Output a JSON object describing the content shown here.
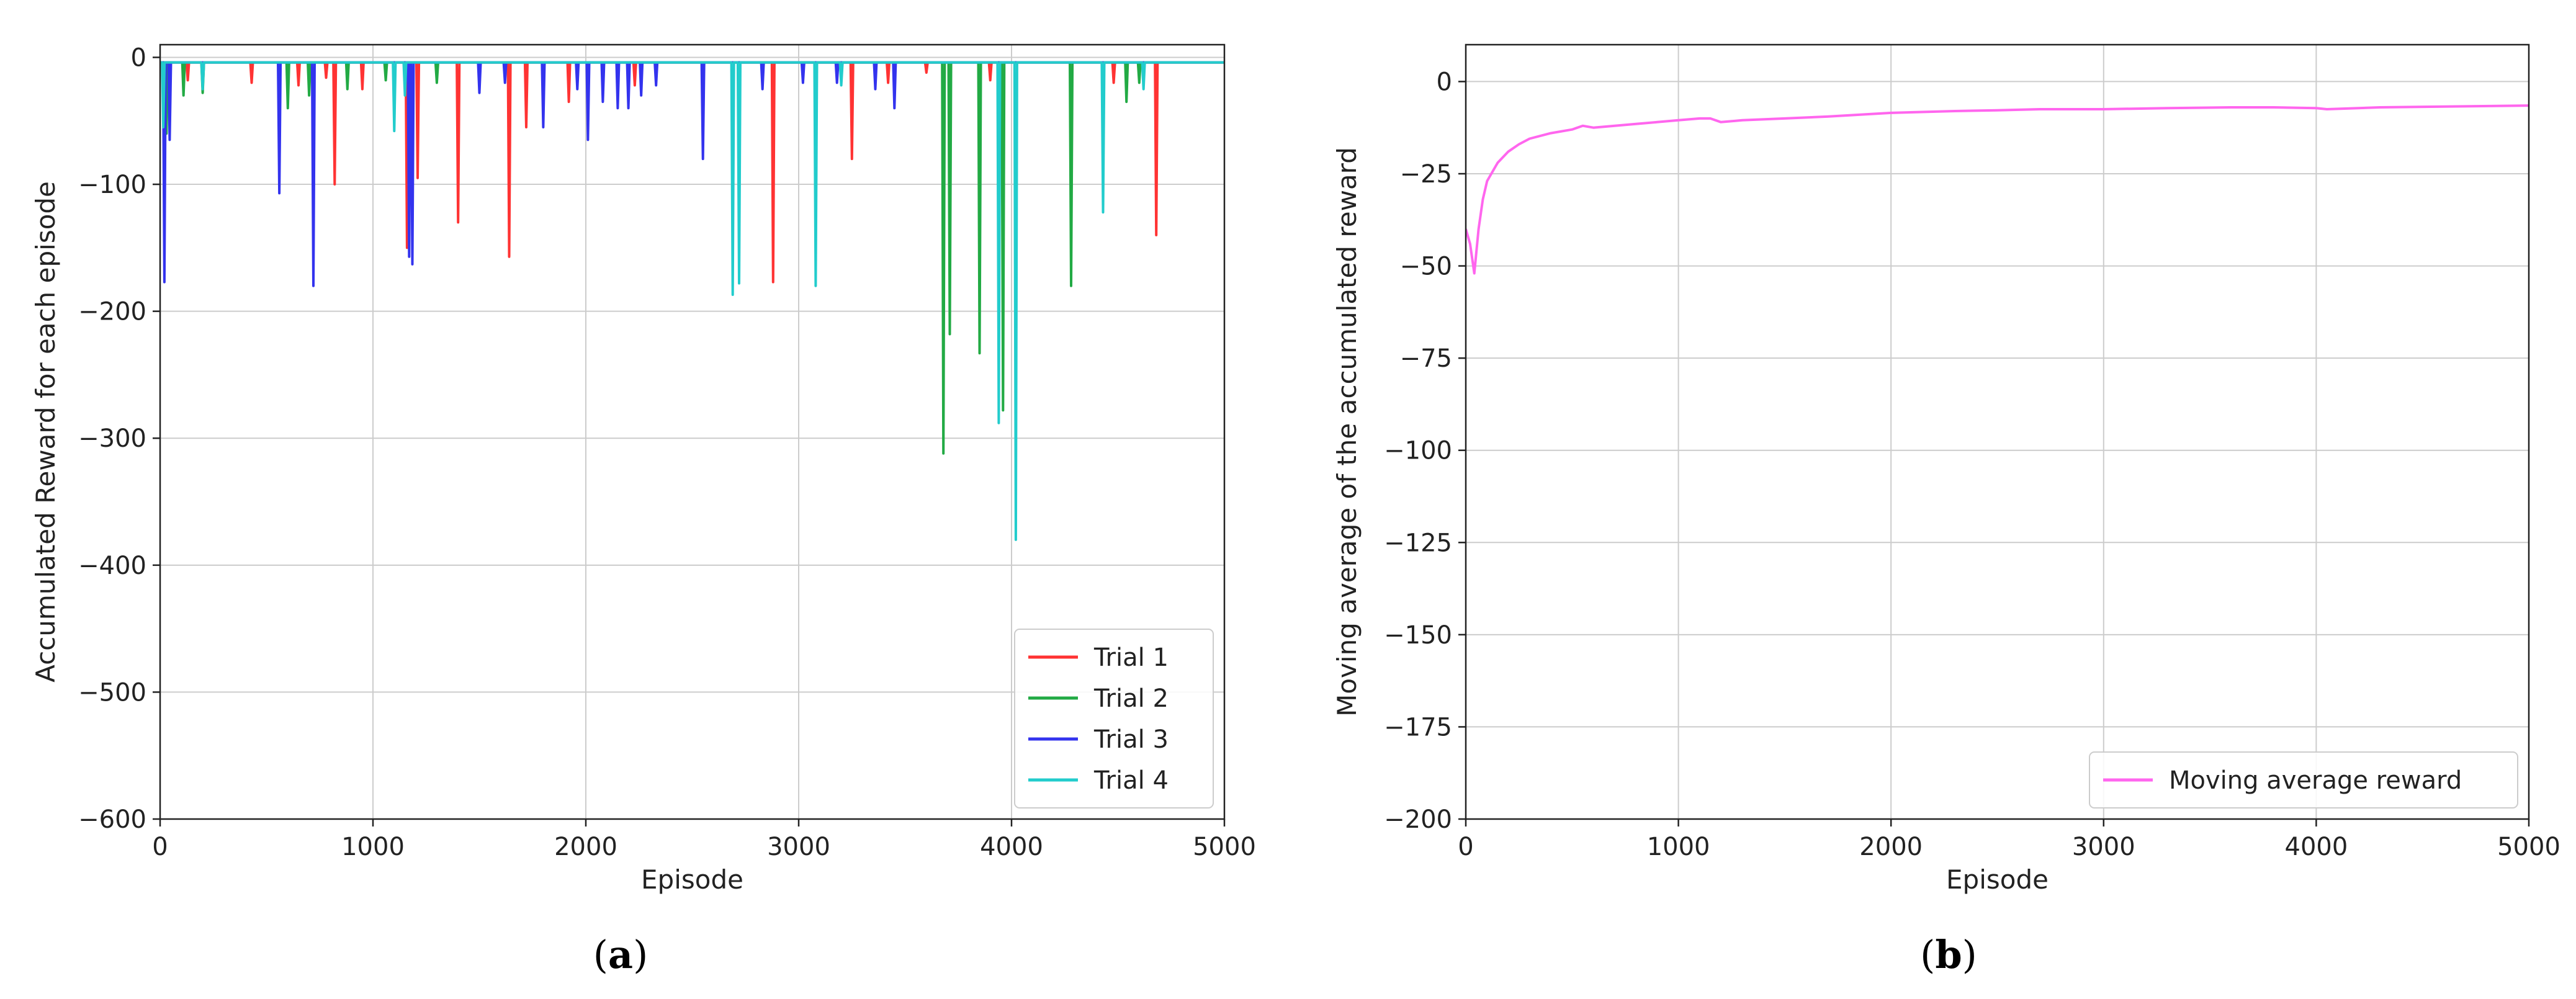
{
  "chart_data": [
    {
      "type": "line",
      "panel_label": "a",
      "title": "",
      "xlabel": "Episode",
      "ylabel": "Accumulated Reward for each episode",
      "xlim": [
        0,
        5000
      ],
      "ylim": [
        -600,
        10
      ],
      "xticks": [
        0,
        1000,
        2000,
        3000,
        4000,
        5000
      ],
      "yticks": [
        0,
        -100,
        -200,
        -300,
        -400,
        -500,
        -600
      ],
      "grid": true,
      "legend_position": "lower-right",
      "baseline": -4,
      "series": [
        {
          "name": "Trial 1",
          "color": "#ff3333",
          "spikes": [
            [
              25,
              -40
            ],
            [
              130,
              -18
            ],
            [
              430,
              -20
            ],
            [
              650,
              -22
            ],
            [
              780,
              -16
            ],
            [
              820,
              -100
            ],
            [
              950,
              -25
            ],
            [
              1160,
              -150
            ],
            [
              1210,
              -95
            ],
            [
              1400,
              -130
            ],
            [
              1640,
              -157
            ],
            [
              1720,
              -55
            ],
            [
              1920,
              -35
            ],
            [
              2230,
              -22
            ],
            [
              2880,
              -177
            ],
            [
              3250,
              -80
            ],
            [
              3420,
              -20
            ],
            [
              3600,
              -12
            ],
            [
              3900,
              -18
            ],
            [
              4480,
              -20
            ],
            [
              4680,
              -140
            ]
          ]
        },
        {
          "name": "Trial 2",
          "color": "#22aa44",
          "spikes": [
            [
              30,
              -60
            ],
            [
              110,
              -30
            ],
            [
              200,
              -28
            ],
            [
              600,
              -40
            ],
            [
              700,
              -30
            ],
            [
              880,
              -25
            ],
            [
              1060,
              -18
            ],
            [
              1300,
              -20
            ],
            [
              3680,
              -312
            ],
            [
              3710,
              -218
            ],
            [
              3850,
              -233
            ],
            [
              3960,
              -278
            ],
            [
              4280,
              -180
            ],
            [
              4540,
              -35
            ],
            [
              4600,
              -20
            ]
          ]
        },
        {
          "name": "Trial 3",
          "color": "#3333ee",
          "spikes": [
            [
              20,
              -177
            ],
            [
              45,
              -65
            ],
            [
              560,
              -107
            ],
            [
              720,
              -180
            ],
            [
              1170,
              -157
            ],
            [
              1185,
              -163
            ],
            [
              1500,
              -28
            ],
            [
              1620,
              -20
            ],
            [
              1800,
              -55
            ],
            [
              1960,
              -25
            ],
            [
              2010,
              -65
            ],
            [
              2080,
              -35
            ],
            [
              2150,
              -40
            ],
            [
              2200,
              -40
            ],
            [
              2260,
              -30
            ],
            [
              2330,
              -22
            ],
            [
              2550,
              -80
            ],
            [
              2830,
              -25
            ],
            [
              3020,
              -20
            ],
            [
              3180,
              -20
            ],
            [
              3360,
              -25
            ],
            [
              3450,
              -40
            ]
          ]
        },
        {
          "name": "Trial 4",
          "color": "#22cccc",
          "spikes": [
            [
              15,
              -55
            ],
            [
              200,
              -25
            ],
            [
              1100,
              -58
            ],
            [
              1150,
              -30
            ],
            [
              2690,
              -187
            ],
            [
              2720,
              -178
            ],
            [
              3080,
              -180
            ],
            [
              3200,
              -22
            ],
            [
              3940,
              -288
            ],
            [
              4020,
              -380
            ],
            [
              4430,
              -122
            ],
            [
              4620,
              -25
            ]
          ]
        }
      ]
    },
    {
      "type": "line",
      "panel_label": "b",
      "title": "",
      "xlabel": "Episode",
      "ylabel": "Moving average of the accumulated reward",
      "xlim": [
        0,
        5000
      ],
      "ylim": [
        -200,
        10
      ],
      "xticks": [
        0,
        1000,
        2000,
        3000,
        4000,
        5000
      ],
      "yticks": [
        0,
        -25,
        -50,
        -75,
        -100,
        -125,
        -150,
        -175,
        -200
      ],
      "grid": true,
      "legend_position": "lower-right",
      "series": [
        {
          "name": "Moving average reward",
          "color": "#ff66ee",
          "x": [
            0,
            20,
            40,
            60,
            80,
            100,
            150,
            200,
            250,
            300,
            400,
            500,
            550,
            600,
            700,
            800,
            900,
            1000,
            1100,
            1150,
            1200,
            1300,
            1500,
            1700,
            2000,
            2300,
            2500,
            2700,
            3000,
            3300,
            3600,
            3800,
            4000,
            4050,
            4300,
            4600,
            5000
          ],
          "y": [
            -40,
            -44,
            -52,
            -40,
            -32,
            -27,
            -22,
            -19,
            -17,
            -15.5,
            -14,
            -13,
            -12,
            -12.5,
            -12,
            -11.5,
            -11,
            -10.5,
            -10,
            -10,
            -11,
            -10.5,
            -10,
            -9.5,
            -8.5,
            -8,
            -7.8,
            -7.5,
            -7.5,
            -7.2,
            -7,
            -7,
            -7.2,
            -7.5,
            -7,
            -6.8,
            -6.5
          ]
        }
      ]
    }
  ]
}
